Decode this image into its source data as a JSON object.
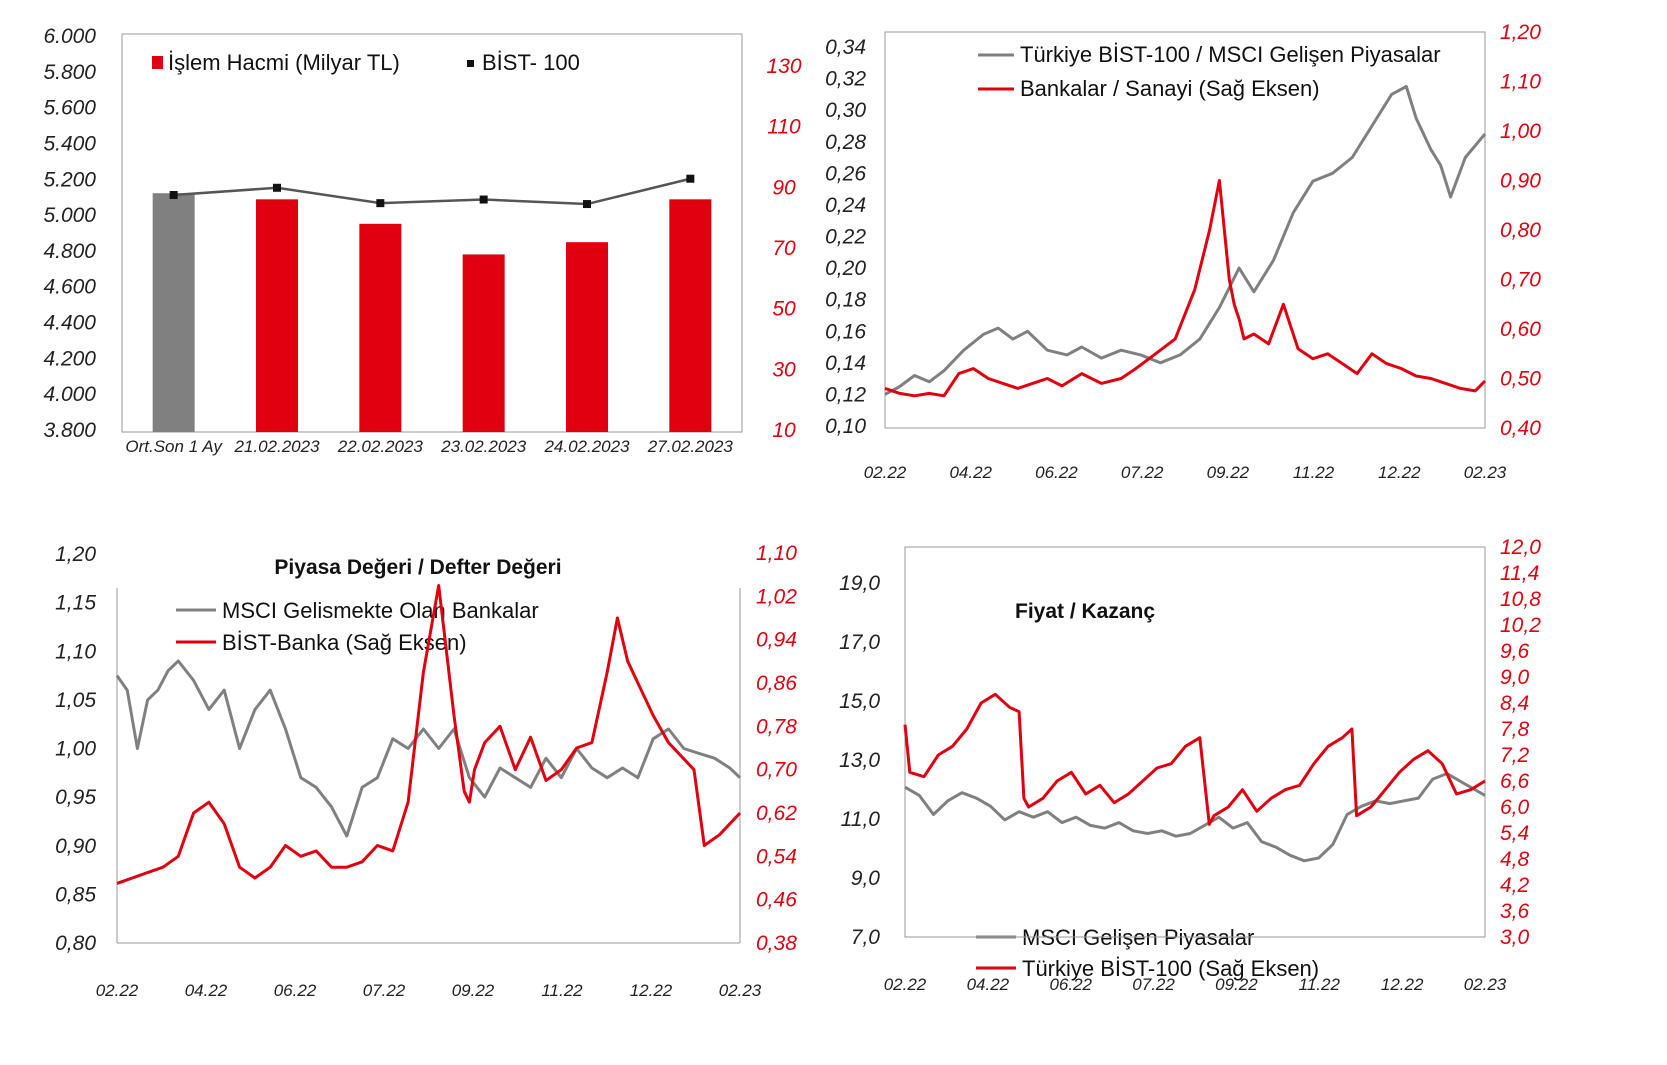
{
  "colors": {
    "red": "#e1000f",
    "gray": "#808080",
    "black": "#333333"
  },
  "chart_data": [
    {
      "type": "bar",
      "title": "",
      "legend": [
        "İşlem Hacmi (Milyar TL)",
        "BİST- 100"
      ],
      "categories": [
        "Ort.Son 1 Ay",
        "21.02.2023",
        "22.02.2023",
        "23.02.2023",
        "24.02.2023",
        "27.02.2023"
      ],
      "series": [
        {
          "name": "İşlem Hacmi (Milyar TL)",
          "axis": "right",
          "values": [
            88,
            86,
            78,
            68,
            72,
            86
          ]
        },
        {
          "name": "BİST- 100",
          "axis": "left",
          "type": "line",
          "values": [
            5110,
            5150,
            5065,
            5085,
            5060,
            5200
          ]
        }
      ],
      "left_ticks": [
        "6.000",
        "5.800",
        "5.600",
        "5.400",
        "5.200",
        "5.000",
        "4.800",
        "4.600",
        "4.400",
        "4.200",
        "4.000",
        "3.800"
      ],
      "right_ticks": [
        "130",
        "110",
        "90",
        "70",
        "50",
        "30",
        "10"
      ],
      "ylim_left": [
        3800,
        6000
      ],
      "ylim_right": [
        10,
        140
      ],
      "legend_position": "top"
    },
    {
      "type": "line",
      "title": "",
      "legend": [
        "Türkiye BİST-100 / MSCI Gelişen Piyasalar",
        "Bankalar / Sanayi (Sağ Eksen)"
      ],
      "x_ticks": [
        "02.22",
        "04.22",
        "06.22",
        "07.22",
        "09.22",
        "11.22",
        "12.22",
        "02.23"
      ],
      "left_ticks": [
        "0,34",
        "0,32",
        "0,30",
        "0,28",
        "0,26",
        "0,24",
        "0,22",
        "0,20",
        "0,18",
        "0,16",
        "0,14",
        "0,12",
        "0,10"
      ],
      "right_ticks": [
        "1,20",
        "1,10",
        "1,00",
        "0,90",
        "0,80",
        "0,70",
        "0,60",
        "0,50",
        "0,40"
      ],
      "ylim_left": [
        0.1,
        0.34
      ],
      "ylim_right": [
        0.4,
        1.2
      ],
      "series": [
        {
          "name": "Türkiye BİST-100 / MSCI Gelişen Piyasalar",
          "axis": "left",
          "x": [
            0,
            0.3,
            0.6,
            0.9,
            1.2,
            1.6,
            2.0,
            2.3,
            2.6,
            2.9,
            3.3,
            3.7,
            4.0,
            4.4,
            4.8,
            5.2,
            5.6,
            6.0,
            6.4,
            6.8,
            7.2,
            7.5,
            7.9,
            8.3,
            8.7,
            9.1,
            9.5,
            9.9,
            10.3,
            10.6,
            10.8,
            11.1,
            11.3,
            11.5,
            11.8,
            12.2
          ],
          "values": [
            0.12,
            0.125,
            0.132,
            0.128,
            0.135,
            0.148,
            0.158,
            0.162,
            0.155,
            0.16,
            0.148,
            0.145,
            0.15,
            0.143,
            0.148,
            0.145,
            0.14,
            0.145,
            0.155,
            0.175,
            0.2,
            0.185,
            0.205,
            0.235,
            0.255,
            0.26,
            0.27,
            0.29,
            0.31,
            0.315,
            0.295,
            0.275,
            0.265,
            0.245,
            0.27,
            0.285
          ]
        },
        {
          "name": "Bankalar / Sanayi (Sağ Eksen)",
          "axis": "right",
          "x": [
            0,
            0.3,
            0.6,
            0.9,
            1.2,
            1.5,
            1.8,
            2.1,
            2.4,
            2.7,
            3.0,
            3.3,
            3.6,
            4.0,
            4.4,
            4.8,
            5.1,
            5.5,
            5.9,
            6.3,
            6.6,
            6.8,
            7.0,
            7.1,
            7.2,
            7.3,
            7.5,
            7.8,
            8.1,
            8.4,
            8.7,
            9.0,
            9.3,
            9.6,
            9.9,
            10.2,
            10.5,
            10.8,
            11.1,
            11.4,
            11.7,
            12.0,
            12.2
          ],
          "values": [
            0.48,
            0.47,
            0.465,
            0.47,
            0.465,
            0.51,
            0.52,
            0.5,
            0.49,
            0.48,
            0.49,
            0.5,
            0.485,
            0.51,
            0.49,
            0.5,
            0.52,
            0.55,
            0.58,
            0.68,
            0.8,
            0.9,
            0.7,
            0.65,
            0.62,
            0.58,
            0.59,
            0.57,
            0.65,
            0.56,
            0.54,
            0.55,
            0.53,
            0.51,
            0.55,
            0.53,
            0.52,
            0.505,
            0.5,
            0.49,
            0.48,
            0.475,
            0.495
          ]
        }
      ],
      "legend_position": "top-left"
    },
    {
      "type": "line",
      "title": "Piyasa Değeri / Defter Değeri",
      "legend": [
        "MSCI Gelismekte Olan Bankalar",
        "BİST-Banka (Sağ Eksen)"
      ],
      "x_ticks": [
        "02.22",
        "04.22",
        "06.22",
        "07.22",
        "09.22",
        "11.22",
        "12.22",
        "02.23"
      ],
      "left_ticks": [
        "1,20",
        "1,15",
        "1,10",
        "1,05",
        "1,00",
        "0,95",
        "0,90",
        "0,85",
        "0,80"
      ],
      "right_ticks": [
        "1,10",
        "1,02",
        "0,94",
        "0,86",
        "0,78",
        "0,70",
        "0,62",
        "0,54",
        "0,46",
        "0,38"
      ],
      "ylim_left": [
        0.8,
        1.2
      ],
      "ylim_right": [
        0.38,
        1.1
      ],
      "series": [
        {
          "name": "MSCI Gelismekte Olan Bankalar",
          "axis": "left",
          "x": [
            0,
            0.2,
            0.4,
            0.6,
            0.8,
            1.0,
            1.2,
            1.5,
            1.8,
            2.1,
            2.4,
            2.7,
            3.0,
            3.3,
            3.6,
            3.9,
            4.2,
            4.5,
            4.8,
            5.1,
            5.4,
            5.7,
            6.0,
            6.3,
            6.6,
            6.9,
            7.2,
            7.5,
            7.8,
            8.1,
            8.4,
            8.7,
            9.0,
            9.3,
            9.6,
            9.9,
            10.2,
            10.5,
            10.8,
            11.1,
            11.4,
            11.7,
            12.0,
            12.2
          ],
          "values": [
            1.075,
            1.06,
            1.0,
            1.05,
            1.06,
            1.08,
            1.09,
            1.07,
            1.04,
            1.06,
            1.0,
            1.04,
            1.06,
            1.02,
            0.97,
            0.96,
            0.94,
            0.91,
            0.96,
            0.97,
            1.01,
            1.0,
            1.02,
            1.0,
            1.02,
            0.97,
            0.95,
            0.98,
            0.97,
            0.96,
            0.99,
            0.97,
            1.0,
            0.98,
            0.97,
            0.98,
            0.97,
            1.01,
            1.02,
            1.0,
            0.995,
            0.99,
            0.98,
            0.97
          ]
        },
        {
          "name": "BİST-Banka (Sağ Eksen)",
          "axis": "right",
          "x": [
            0,
            0.3,
            0.6,
            0.9,
            1.2,
            1.5,
            1.8,
            2.1,
            2.4,
            2.7,
            3.0,
            3.3,
            3.6,
            3.9,
            4.2,
            4.5,
            4.8,
            5.1,
            5.4,
            5.7,
            6.0,
            6.3,
            6.6,
            6.8,
            6.9,
            7.0,
            7.2,
            7.5,
            7.8,
            8.1,
            8.4,
            8.7,
            9.0,
            9.3,
            9.6,
            9.8,
            10.0,
            10.2,
            10.5,
            10.8,
            11.1,
            11.3,
            11.5,
            11.8,
            12.0,
            12.2
          ],
          "values": [
            0.49,
            0.5,
            0.51,
            0.52,
            0.54,
            0.62,
            0.64,
            0.6,
            0.52,
            0.5,
            0.52,
            0.56,
            0.54,
            0.55,
            0.52,
            0.52,
            0.53,
            0.56,
            0.55,
            0.64,
            0.88,
            1.04,
            0.8,
            0.66,
            0.64,
            0.7,
            0.75,
            0.78,
            0.7,
            0.76,
            0.68,
            0.7,
            0.74,
            0.75,
            0.88,
            0.98,
            0.9,
            0.86,
            0.8,
            0.75,
            0.72,
            0.7,
            0.56,
            0.58,
            0.6,
            0.62
          ]
        }
      ],
      "legend_position": "top-left"
    },
    {
      "type": "line",
      "title": "Fiyat / Kazanç",
      "legend": [
        "MSCI Gelişen Piyasalar",
        "Türkiye BİST-100 (Sağ Eksen)"
      ],
      "x_ticks": [
        "02.22",
        "04.22",
        "06.22",
        "07.22",
        "09.22",
        "11.22",
        "12.22",
        "02.23"
      ],
      "left_ticks": [
        "19,0",
        "17,0",
        "15,0",
        "13,0",
        "11,0",
        "9,0",
        "7,0"
      ],
      "right_ticks": [
        "12,0",
        "11,4",
        "10,8",
        "10,2",
        "9,6",
        "9,0",
        "8,4",
        "7,8",
        "7,2",
        "6,6",
        "6,0",
        "5,4",
        "4,8",
        "4,2",
        "3,6",
        "3,0"
      ],
      "ylim_left": [
        7.0,
        20.0
      ],
      "ylim_right": [
        3.0,
        12.0
      ],
      "series": [
        {
          "name": "MSCI Gelişen Piyasalar",
          "axis": "left",
          "x": [
            0,
            0.3,
            0.6,
            0.9,
            1.2,
            1.5,
            1.8,
            2.1,
            2.4,
            2.7,
            3.0,
            3.3,
            3.6,
            3.9,
            4.2,
            4.5,
            4.8,
            5.1,
            5.4,
            5.7,
            6.0,
            6.3,
            6.6,
            6.9,
            7.2,
            7.5,
            7.8,
            8.1,
            8.4,
            8.7,
            9.0,
            9.3,
            9.6,
            9.9,
            10.2,
            10.5,
            10.8,
            11.1,
            11.4,
            11.7,
            12.0,
            12.2
          ],
          "values": [
            12.5,
            12.2,
            11.5,
            12.0,
            12.3,
            12.1,
            11.8,
            11.3,
            11.6,
            11.4,
            11.6,
            11.2,
            11.4,
            11.1,
            11.0,
            11.2,
            10.9,
            10.8,
            10.9,
            10.7,
            10.8,
            11.1,
            11.4,
            11.0,
            11.2,
            10.5,
            10.3,
            10.0,
            9.8,
            9.9,
            10.4,
            11.5,
            11.8,
            12.0,
            11.9,
            12.0,
            12.1,
            12.8,
            13.0,
            12.7,
            12.4,
            12.2
          ]
        },
        {
          "name": "Türkiye BİST-100 (Sağ Eksen)",
          "axis": "right",
          "x": [
            0,
            0.1,
            0.4,
            0.7,
            1.0,
            1.3,
            1.6,
            1.9,
            2.2,
            2.4,
            2.5,
            2.6,
            2.9,
            3.2,
            3.5,
            3.8,
            4.1,
            4.4,
            4.7,
            5.0,
            5.3,
            5.6,
            5.9,
            6.2,
            6.4,
            6.5,
            6.8,
            7.1,
            7.4,
            7.7,
            8.0,
            8.3,
            8.6,
            8.9,
            9.2,
            9.4,
            9.5,
            9.8,
            10.1,
            10.4,
            10.7,
            11.0,
            11.3,
            11.6,
            11.9,
            12.2
          ],
          "values": [
            7.9,
            6.8,
            6.7,
            7.2,
            7.4,
            7.8,
            8.4,
            8.6,
            8.3,
            8.2,
            6.2,
            6.0,
            6.2,
            6.6,
            6.8,
            6.3,
            6.5,
            6.1,
            6.3,
            6.6,
            6.9,
            7.0,
            7.4,
            7.6,
            5.6,
            5.8,
            6.0,
            6.4,
            5.9,
            6.2,
            6.4,
            6.5,
            7.0,
            7.4,
            7.6,
            7.8,
            5.8,
            6.0,
            6.4,
            6.8,
            7.1,
            7.3,
            7.0,
            6.3,
            6.4,
            6.6
          ]
        }
      ],
      "legend_position": "bottom-left"
    }
  ]
}
